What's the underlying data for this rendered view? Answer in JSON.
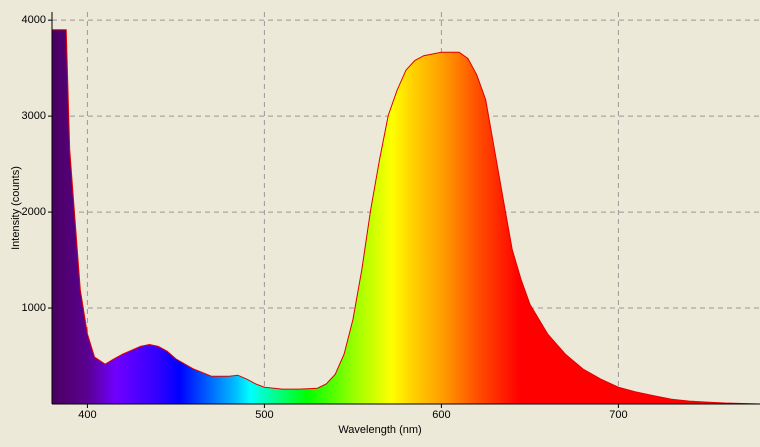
{
  "chart_data": {
    "type": "area",
    "x_label": "Wavelength (nm)",
    "y_label": "Intensity (counts)",
    "x": [
      380,
      388,
      390,
      396,
      400,
      404,
      410,
      415,
      420,
      430,
      435,
      440,
      445,
      450,
      460,
      470,
      480,
      485,
      490,
      495,
      500,
      510,
      520,
      530,
      535,
      540,
      545,
      550,
      555,
      560,
      565,
      570,
      575,
      580,
      585,
      590,
      600,
      610,
      615,
      620,
      625,
      630,
      635,
      640,
      645,
      650,
      660,
      670,
      680,
      690,
      700,
      710,
      720,
      730,
      740,
      750,
      760,
      770,
      780
    ],
    "values": [
      3900,
      3900,
      2650,
      1190,
      730,
      490,
      415,
      470,
      520,
      600,
      620,
      600,
      550,
      470,
      365,
      290,
      290,
      300,
      260,
      210,
      175,
      155,
      155,
      165,
      210,
      310,
      520,
      880,
      1400,
      2020,
      2540,
      3010,
      3270,
      3480,
      3580,
      3630,
      3665,
      3665,
      3600,
      3430,
      3170,
      2650,
      2130,
      1610,
      1300,
      1040,
      730,
      520,
      365,
      260,
      175,
      125,
      85,
      50,
      30,
      20,
      10,
      5,
      0
    ],
    "line_color": "#e00000",
    "xlim": [
      380,
      780
    ],
    "ylim": [
      0,
      4085
    ],
    "xticks": [
      400,
      500,
      600,
      700
    ],
    "yticks": [
      1000,
      2000,
      3000,
      4000
    ],
    "grid": true
  }
}
